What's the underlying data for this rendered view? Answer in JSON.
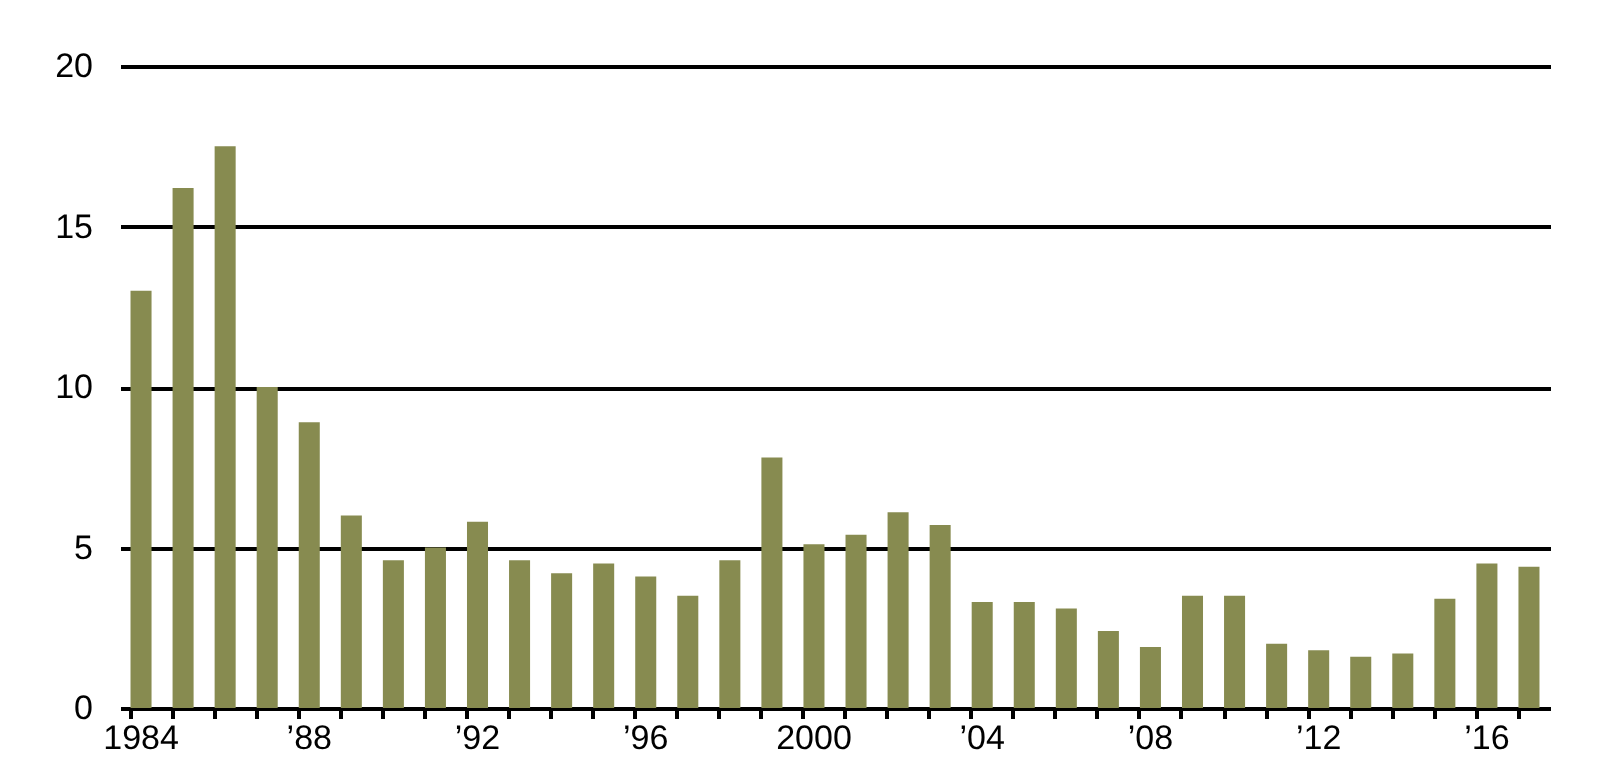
{
  "chart_data": {
    "type": "bar",
    "categories": [
      "1984",
      null,
      null,
      null,
      "’88",
      null,
      null,
      null,
      "’92",
      null,
      null,
      null,
      "’96",
      null,
      null,
      null,
      "2000",
      null,
      null,
      null,
      "’04",
      null,
      null,
      null,
      "’08",
      null,
      null,
      null,
      "’12",
      null,
      null,
      null,
      "’16",
      null
    ],
    "values": [
      13.0,
      16.2,
      17.5,
      10.0,
      8.9,
      6.0,
      4.6,
      5.0,
      5.8,
      4.6,
      4.2,
      4.5,
      4.1,
      3.5,
      4.6,
      7.8,
      5.1,
      5.4,
      6.1,
      5.7,
      3.3,
      3.3,
      3.1,
      2.4,
      1.9,
      3.5,
      3.5,
      2.0,
      1.8,
      1.6,
      1.7,
      3.4,
      4.5,
      4.4
    ],
    "color": "#878b50",
    "ylim": [
      0,
      20
    ],
    "yticks": [
      0,
      5,
      10,
      15,
      20
    ],
    "grid": "y"
  }
}
